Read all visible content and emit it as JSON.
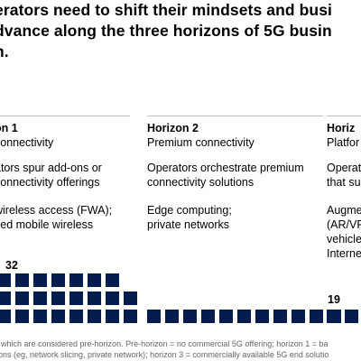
{
  "title_lines": [
    "erators need to shift their mindsets and busi",
    "dvance along the three horizons of 5G busin",
    "n."
  ],
  "columns": [
    {
      "name": "on 1",
      "subtitle": "connectivity",
      "description_lines": [
        "ators spur add-ons or",
        "connectivity offerings"
      ],
      "examples_lines": [
        "wireless access (FWA);",
        "ced mobile wireless"
      ]
    },
    {
      "name": "Horizon 2",
      "subtitle": "Premium connectivity",
      "description_lines": [
        "Operators orchestrate premium",
        "connectivity solutions"
      ],
      "examples_lines": [
        "Edge computing;",
        "private networks"
      ]
    },
    {
      "name": "Horiz",
      "subtitle": "Platfor",
      "description_lines": [
        "Operat",
        "that su"
      ],
      "examples_lines": [
        "Augme",
        "(AR/VR",
        "vehicle",
        "Interne"
      ]
    }
  ],
  "chart_data": {
    "type": "bar",
    "unit_note": "each square represents one operator",
    "categories": [
      "on 1",
      "Horizon 2",
      "Horiz"
    ],
    "values": [
      32,
      19,
      null
    ],
    "value_labels": [
      "32",
      "19",
      ""
    ],
    "visible_squares": [
      23,
      11,
      2
    ]
  },
  "footnote_lines": [
    "f which are considered pre-horizon. Pre-horizon = no commercial 5G offering; horizon 1 = ba",
    "ions (eg, network slicing, private network); horizon 3 = commercially available 5G end solutio"
  ],
  "colors": {
    "square": "#051c4f",
    "rule": "#bdbdbd",
    "footnote": "#666666"
  }
}
